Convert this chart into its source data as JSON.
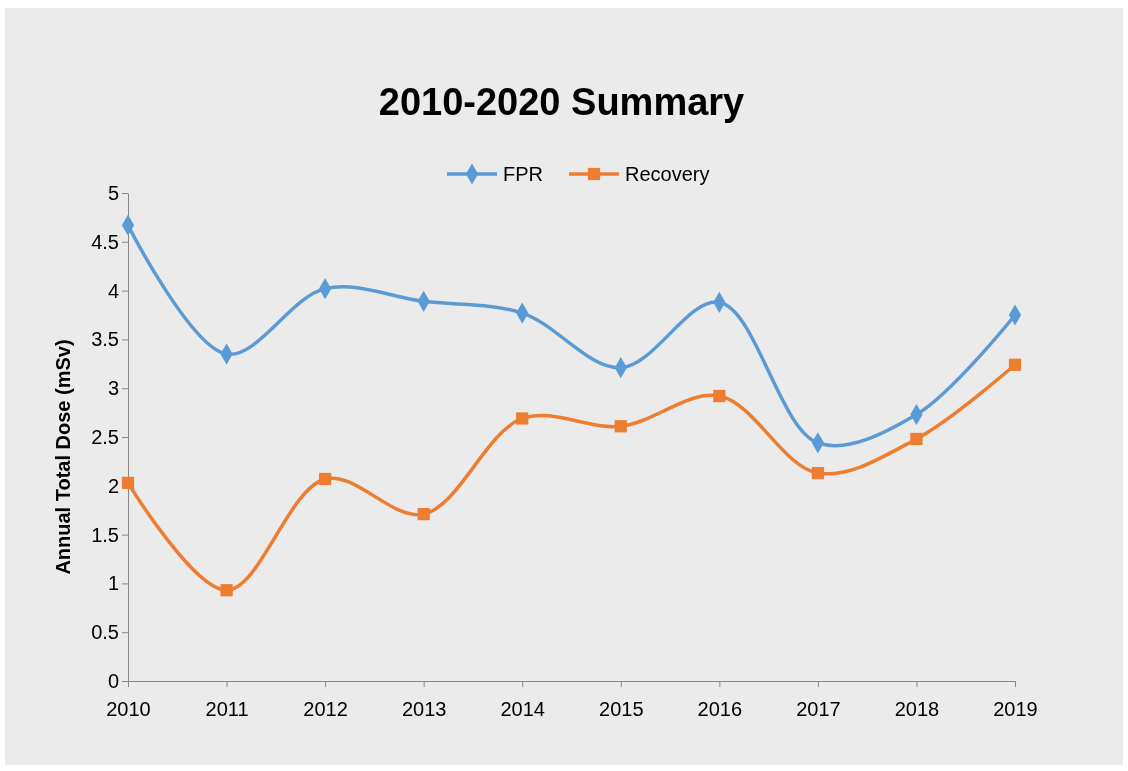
{
  "chart_data": {
    "type": "line",
    "title": "2010-2020 Summary",
    "ylabel": "Annual Total Dose (mSv)",
    "categories": [
      "2010",
      "2011",
      "2012",
      "2013",
      "2014",
      "2015",
      "2016",
      "2017",
      "2018",
      "2019"
    ],
    "series": [
      {
        "name": "FPR",
        "color": "#5b9bd5",
        "marker": "diamond",
        "values": [
          4.67,
          3.35,
          4.02,
          3.89,
          3.77,
          3.21,
          3.88,
          2.44,
          2.73,
          3.75
        ]
      },
      {
        "name": "Recovery",
        "color": "#ed7d31",
        "marker": "square",
        "values": [
          2.03,
          0.93,
          2.07,
          1.71,
          2.69,
          2.61,
          2.92,
          2.13,
          2.48,
          3.24
        ]
      }
    ],
    "ylim": [
      0,
      5
    ],
    "yticks": [
      0,
      0.5,
      1,
      1.5,
      2,
      2.5,
      3,
      3.5,
      4,
      4.5,
      5
    ],
    "grid": false,
    "legend": "top",
    "line_style": "solid"
  }
}
